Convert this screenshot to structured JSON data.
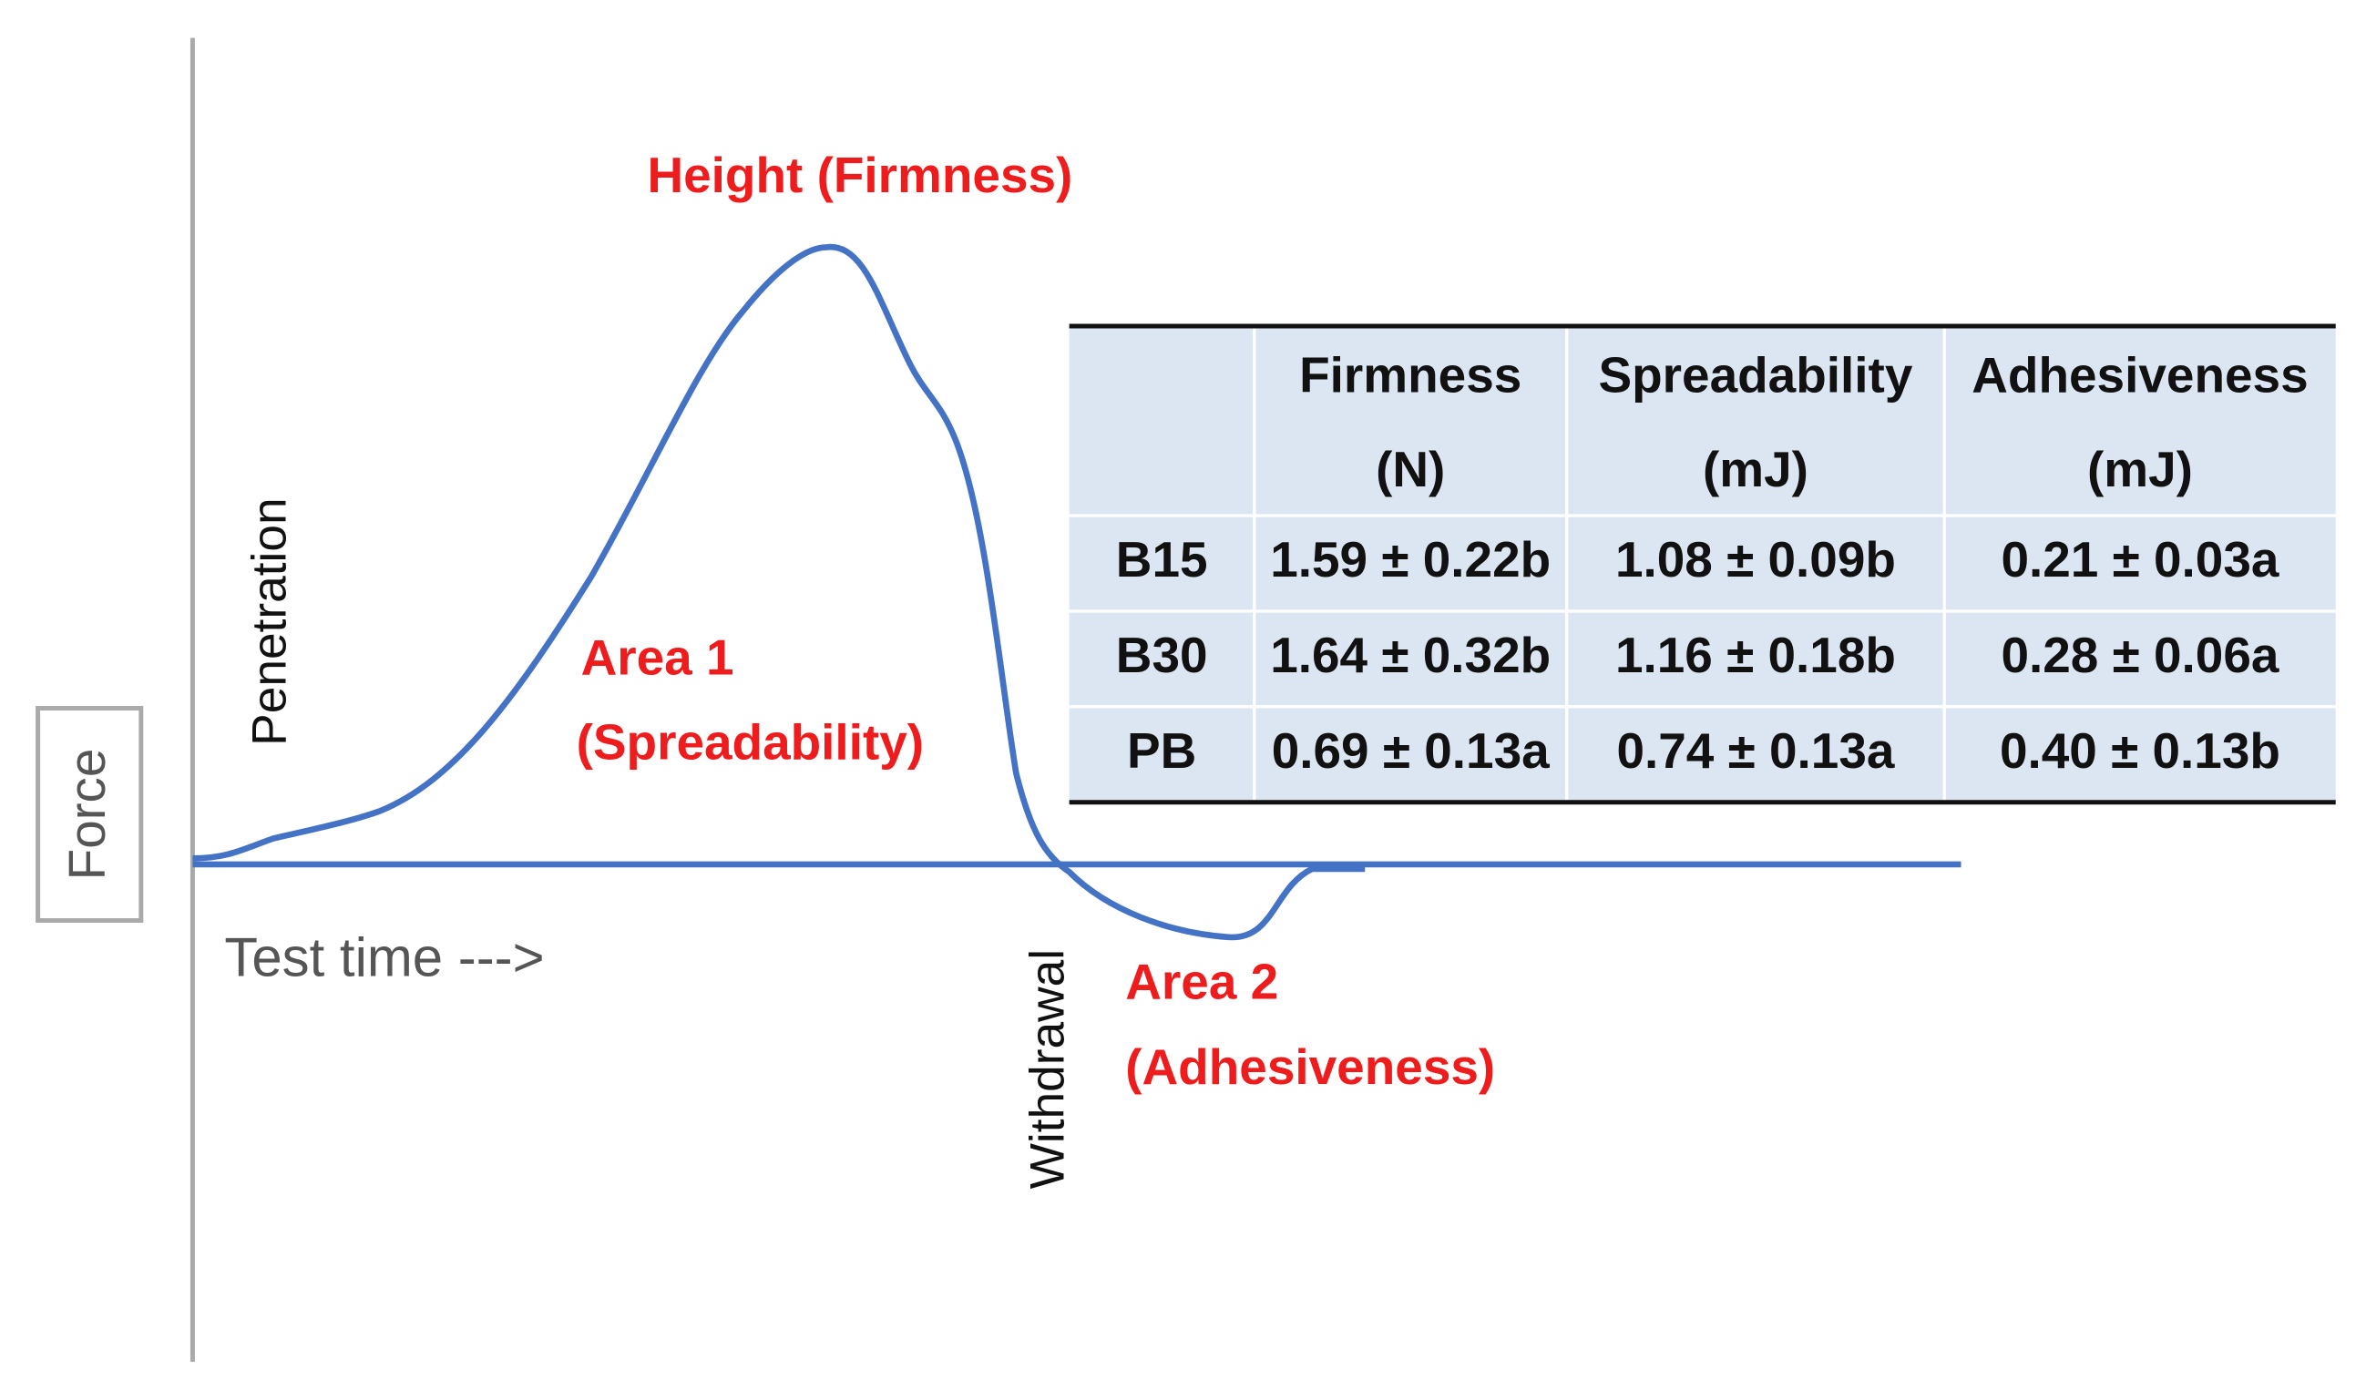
{
  "axes": {
    "y_label": "Force",
    "x_label": "Test time --->"
  },
  "annotations": {
    "peak": "Height (Firmness)",
    "area1": [
      "Area 1",
      "(Spreadability)"
    ],
    "area2": [
      "Area 2",
      "(Adhesiveness)"
    ],
    "penetration": "Penetration",
    "withdrawal": "Withdrawal"
  },
  "table": {
    "columns": [
      {
        "name": "Firmness",
        "unit": "(N)"
      },
      {
        "name": "Spreadability",
        "unit": "(mJ)"
      },
      {
        "name": "Adhesiveness",
        "unit": "(mJ)"
      }
    ],
    "rows": [
      [
        "B15",
        "1.59 ± 0.22b",
        "1.08 ± 0.09b",
        "0.21 ± 0.03a"
      ],
      [
        "B30",
        "1.64 ± 0.32b",
        "1.16 ± 0.18b",
        "0.28 ± 0.06a"
      ],
      [
        "PB",
        "0.69 ± 0.13a",
        "0.74 ± 0.13a",
        "0.40 ± 0.13b"
      ]
    ]
  }
}
